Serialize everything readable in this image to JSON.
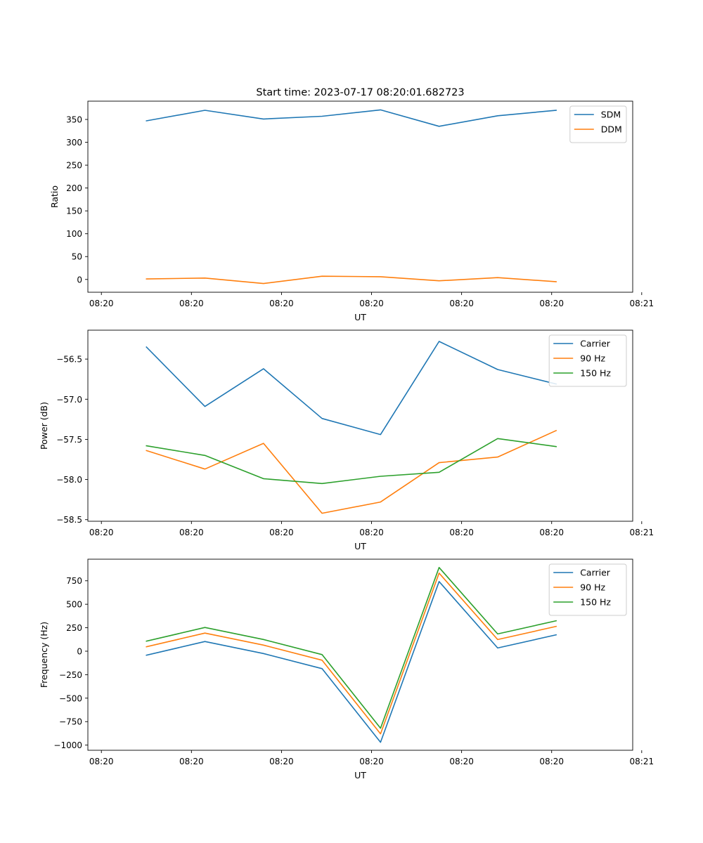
{
  "figure": {
    "title": "Start time: 2023-07-17 08:20:01.682723"
  },
  "chart_data": [
    {
      "type": "line",
      "xlabel": "UT",
      "ylabel": "Ratio",
      "x": [
        1.0,
        1.65,
        2.3,
        2.95,
        3.6,
        4.25,
        4.9,
        5.55
      ],
      "xlim": [
        0.35,
        6.4
      ],
      "xticks": [
        {
          "value": 0.5,
          "label": "08:20"
        },
        {
          "value": 1.5,
          "label": "08:20"
        },
        {
          "value": 2.5,
          "label": "08:20"
        },
        {
          "value": 3.5,
          "label": "08:20"
        },
        {
          "value": 4.5,
          "label": "08:20"
        },
        {
          "value": 5.5,
          "label": "08:20"
        },
        {
          "value": 6.5,
          "label": "08:21"
        }
      ],
      "ylim": [
        -28,
        390
      ],
      "yticks": [
        0,
        50,
        100,
        150,
        200,
        250,
        300,
        350
      ],
      "legend": "top-right",
      "series": [
        {
          "name": "SDM",
          "color": "#1f77b4",
          "values": [
            347,
            370,
            351,
            357,
            371,
            335,
            358,
            370
          ]
        },
        {
          "name": "DDM",
          "color": "#ff7f0e",
          "values": [
            1,
            3,
            -9,
            7,
            6,
            -3,
            4,
            -5
          ]
        }
      ]
    },
    {
      "type": "line",
      "xlabel": "UT",
      "ylabel": "Power (dB)",
      "x": [
        1.0,
        1.65,
        2.3,
        2.95,
        3.6,
        4.25,
        4.9,
        5.55
      ],
      "xlim": [
        0.35,
        6.4
      ],
      "xticks": [
        {
          "value": 0.5,
          "label": "08:20"
        },
        {
          "value": 1.5,
          "label": "08:20"
        },
        {
          "value": 2.5,
          "label": "08:20"
        },
        {
          "value": 3.5,
          "label": "08:20"
        },
        {
          "value": 4.5,
          "label": "08:20"
        },
        {
          "value": 5.5,
          "label": "08:20"
        },
        {
          "value": 6.5,
          "label": "08:21"
        }
      ],
      "ylim": [
        -58.52,
        -56.14
      ],
      "yticks": [
        -58.5,
        -58.0,
        -57.5,
        -57.0,
        -56.5
      ],
      "ytick_labels": [
        "−58.5",
        "−58.0",
        "−57.5",
        "−57.0",
        "−56.5"
      ],
      "legend": "top-right",
      "series": [
        {
          "name": "Carrier",
          "color": "#1f77b4",
          "values": [
            -56.35,
            -57.09,
            -56.62,
            -57.24,
            -57.44,
            -56.28,
            -56.63,
            -56.81
          ]
        },
        {
          "name": "90 Hz",
          "color": "#ff7f0e",
          "values": [
            -57.64,
            -57.87,
            -57.55,
            -58.42,
            -58.28,
            -57.79,
            -57.72,
            -57.39
          ]
        },
        {
          "name": "150 Hz",
          "color": "#2ca02c",
          "values": [
            -57.58,
            -57.7,
            -57.99,
            -58.05,
            -57.96,
            -57.91,
            -57.49,
            -57.59
          ]
        }
      ]
    },
    {
      "type": "line",
      "xlabel": "UT",
      "ylabel": "Frequency (Hz)",
      "x": [
        1.0,
        1.65,
        2.3,
        2.95,
        3.6,
        4.25,
        4.9,
        5.55
      ],
      "xlim": [
        0.35,
        6.4
      ],
      "xticks": [
        {
          "value": 0.5,
          "label": "08:20"
        },
        {
          "value": 1.5,
          "label": "08:20"
        },
        {
          "value": 2.5,
          "label": "08:20"
        },
        {
          "value": 3.5,
          "label": "08:20"
        },
        {
          "value": 4.5,
          "label": "08:20"
        },
        {
          "value": 5.5,
          "label": "08:20"
        },
        {
          "value": 6.5,
          "label": "08:21"
        }
      ],
      "ylim": [
        -1055,
        980
      ],
      "yticks": [
        -1000,
        -750,
        -500,
        -250,
        0,
        250,
        500,
        750
      ],
      "ytick_labels": [
        "−1000",
        "−750",
        "−500",
        "−250",
        "0",
        "250",
        "500",
        "750"
      ],
      "legend": "top-right",
      "series": [
        {
          "name": "Carrier",
          "color": "#1f77b4",
          "values": [
            -43,
            103,
            -25,
            -186,
            -970,
            742,
            34,
            174
          ]
        },
        {
          "name": "90 Hz",
          "color": "#ff7f0e",
          "values": [
            47,
            193,
            65,
            -96,
            -880,
            832,
            124,
            264
          ]
        },
        {
          "name": "150 Hz",
          "color": "#2ca02c",
          "values": [
            107,
            253,
            125,
            -36,
            -820,
            892,
            184,
            324
          ]
        }
      ]
    }
  ]
}
